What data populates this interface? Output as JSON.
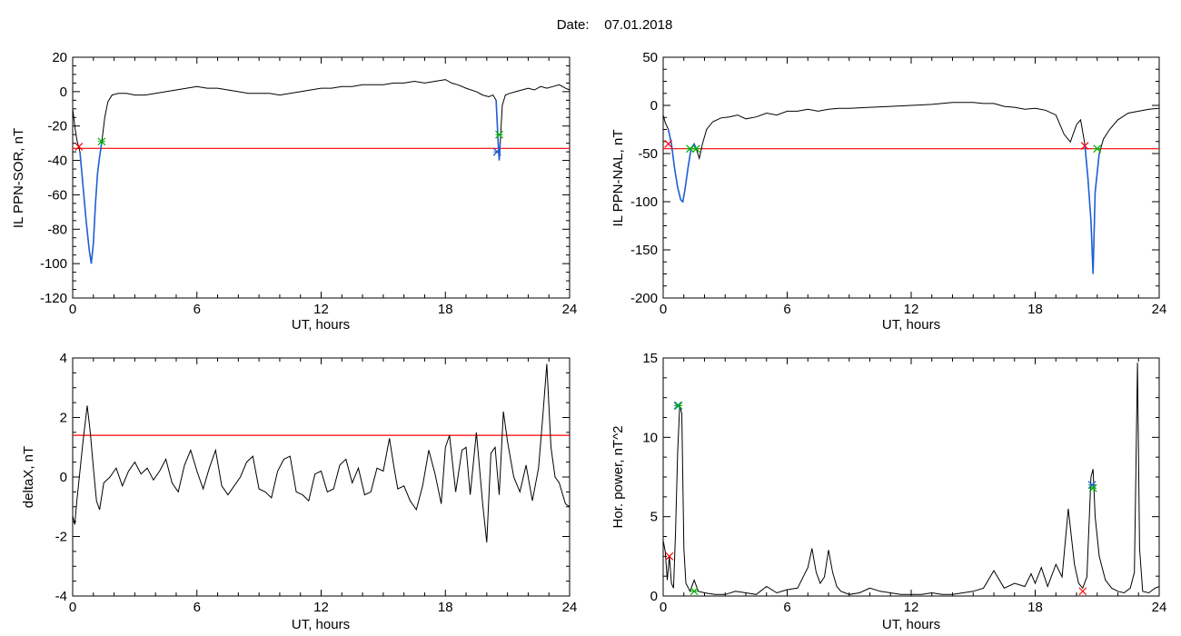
{
  "header": {
    "date_label": "Date:",
    "date_value": "07.01.2018"
  },
  "colors": {
    "line": "#000000",
    "threshold": "#ff0000",
    "event": "#1f5fd6",
    "marker_start": "#ff0000",
    "marker_end": "#00b000",
    "marker_peak": "#1f5fd6"
  },
  "chart_data": [
    {
      "type": "line",
      "xlabel": "UT, hours",
      "ylabel": "IL PPN-SOR, nT",
      "xlim": [
        0,
        24
      ],
      "ylim": [
        -120,
        20
      ],
      "xticks": [
        "0",
        "6",
        "12",
        "18",
        "24"
      ],
      "yticks": [
        "20",
        "0",
        "-20",
        "-40",
        "-60",
        "-80",
        "-100",
        "-120"
      ],
      "ytick_values": [
        20,
        0,
        -20,
        -40,
        -60,
        -80,
        -100,
        -120
      ],
      "threshold": -33,
      "series": [
        {
          "x": [
            0,
            0.1,
            0.2,
            0.35,
            0.5,
            0.65,
            0.8,
            0.9,
            1.0,
            1.1,
            1.2,
            1.3,
            1.4,
            1.55,
            1.7,
            1.9,
            2.2,
            2.6,
            3,
            3.5,
            4,
            4.5,
            5,
            5.5,
            6,
            6.5,
            7,
            7.5,
            8,
            8.5,
            9,
            9.5,
            10,
            10.5,
            11,
            11.5,
            12,
            12.5,
            13,
            13.5,
            14,
            14.5,
            15,
            15.5,
            16,
            16.5,
            17,
            17.5,
            18,
            18.3,
            18.6,
            19,
            19.5,
            19.8,
            20.1,
            20.3,
            20.45,
            20.55,
            20.6,
            20.65,
            20.75,
            20.9,
            21.1,
            21.4,
            21.7,
            22,
            22.3,
            22.6,
            22.9,
            23.2,
            23.5,
            23.8,
            24
          ],
          "y": [
            -10,
            -20,
            -28,
            -35,
            -55,
            -75,
            -92,
            -100,
            -88,
            -65,
            -48,
            -38,
            -30,
            -15,
            -6,
            -2,
            -1,
            -1,
            -2,
            -2,
            -1,
            0,
            1,
            2,
            3,
            2,
            2,
            1,
            0,
            -1,
            -1,
            -1,
            -2,
            -1,
            0,
            1,
            2,
            2,
            3,
            3,
            4,
            4,
            4,
            5,
            5,
            6,
            5,
            6,
            7,
            5,
            4,
            2,
            0,
            -2,
            -3,
            -2,
            -5,
            -30,
            -40,
            -30,
            -8,
            -2,
            -1,
            0,
            1,
            2,
            1,
            3,
            2,
            3,
            4,
            2,
            1
          ]
        }
      ],
      "markers": [
        {
          "x": 0.3,
          "y": -32,
          "kind": "start"
        },
        {
          "x": 1.4,
          "y": -29,
          "kind": "end"
        },
        {
          "x": 20.5,
          "y": -35,
          "kind": "start"
        },
        {
          "x": 20.6,
          "y": -25,
          "kind": "end"
        },
        {
          "x": 20.5,
          "y": -35,
          "kind": "peak"
        }
      ],
      "event_spans": [
        [
          0.3,
          1.4
        ],
        [
          20.4,
          20.7
        ]
      ]
    },
    {
      "type": "line",
      "xlabel": "UT, hours",
      "ylabel": "IL PPN-NAL, nT",
      "xlim": [
        0,
        24
      ],
      "ylim": [
        -200,
        50
      ],
      "xticks": [
        "0",
        "6",
        "12",
        "18",
        "24"
      ],
      "yticks": [
        "50",
        "0",
        "-50",
        "-100",
        "-150",
        "-200"
      ],
      "ytick_values": [
        50,
        0,
        -50,
        -100,
        -150,
        -200
      ],
      "threshold": -45,
      "series": [
        {
          "x": [
            0,
            0.1,
            0.25,
            0.4,
            0.55,
            0.7,
            0.85,
            0.95,
            1.05,
            1.2,
            1.35,
            1.5,
            1.6,
            1.75,
            1.9,
            2.1,
            2.4,
            2.8,
            3.2,
            3.6,
            4,
            4.5,
            5,
            5.5,
            6,
            6.5,
            7,
            7.5,
            8,
            8.5,
            9,
            10,
            11,
            12,
            13,
            14,
            15,
            15.5,
            16,
            16.5,
            17,
            17.5,
            18,
            18.5,
            19,
            19.4,
            19.7,
            20,
            20.2,
            20.4,
            20.55,
            20.7,
            20.8,
            20.9,
            21.1,
            21.3,
            21.6,
            22,
            22.5,
            23,
            23.5,
            24
          ],
          "y": [
            -10,
            -18,
            -25,
            -40,
            -65,
            -85,
            -98,
            -100,
            -88,
            -65,
            -45,
            -40,
            -45,
            -55,
            -40,
            -25,
            -17,
            -13,
            -12,
            -10,
            -14,
            -12,
            -8,
            -10,
            -6,
            -6,
            -4,
            -6,
            -4,
            -3,
            -3,
            -2,
            -1,
            0,
            1,
            3,
            3,
            2,
            2,
            -1,
            -2,
            -4,
            -3,
            -5,
            -10,
            -30,
            -38,
            -20,
            -15,
            -40,
            -75,
            -120,
            -175,
            -90,
            -50,
            -35,
            -25,
            -15,
            -8,
            -6,
            -4,
            -3
          ]
        }
      ],
      "markers": [
        {
          "x": 0.25,
          "y": -40,
          "kind": "start"
        },
        {
          "x": 1.6,
          "y": -45,
          "kind": "end"
        },
        {
          "x": 1.3,
          "y": -45,
          "kind": "end"
        },
        {
          "x": 20.4,
          "y": -42,
          "kind": "start"
        },
        {
          "x": 21.0,
          "y": -45,
          "kind": "end"
        }
      ],
      "event_spans": [
        [
          0.25,
          1.7
        ],
        [
          20.4,
          21.1
        ]
      ]
    },
    {
      "type": "line",
      "xlabel": "UT, hours",
      "ylabel": "deltaX, nT",
      "xlim": [
        0,
        24
      ],
      "ylim": [
        -4,
        4
      ],
      "xticks": [
        "0",
        "6",
        "12",
        "18",
        "24"
      ],
      "yticks": [
        "4",
        "2",
        "0",
        "-2",
        "-4"
      ],
      "ytick_values": [
        4,
        2,
        0,
        -2,
        -4
      ],
      "threshold": 1.4,
      "series": [
        {
          "x": [
            0,
            0.1,
            0.2,
            0.35,
            0.5,
            0.7,
            0.85,
            1.0,
            1.15,
            1.3,
            1.5,
            1.8,
            2.1,
            2.4,
            2.7,
            3.0,
            3.3,
            3.6,
            3.9,
            4.2,
            4.5,
            4.8,
            5.1,
            5.4,
            5.7,
            6.0,
            6.3,
            6.6,
            6.9,
            7.2,
            7.5,
            7.8,
            8.1,
            8.4,
            8.7,
            9.0,
            9.3,
            9.6,
            9.9,
            10.2,
            10.5,
            10.8,
            11.1,
            11.4,
            11.7,
            12.0,
            12.3,
            12.6,
            12.9,
            13.2,
            13.5,
            13.8,
            14.1,
            14.4,
            14.7,
            15.0,
            15.3,
            15.5,
            15.7,
            16.0,
            16.3,
            16.6,
            16.9,
            17.2,
            17.5,
            17.8,
            18.0,
            18.2,
            18.5,
            18.8,
            19.0,
            19.2,
            19.5,
            19.8,
            20.0,
            20.2,
            20.4,
            20.6,
            20.8,
            21.0,
            21.3,
            21.6,
            21.9,
            22.2,
            22.5,
            22.7,
            22.9,
            23.1,
            23.3,
            23.5,
            23.8,
            24
          ],
          "y": [
            -1.3,
            -1.6,
            -0.8,
            0.2,
            1.2,
            2.4,
            1.5,
            0.3,
            -0.8,
            -1.1,
            -0.2,
            0.0,
            0.3,
            -0.3,
            0.2,
            0.5,
            0.1,
            0.3,
            -0.1,
            0.2,
            0.6,
            -0.2,
            -0.5,
            0.4,
            0.9,
            0.2,
            -0.4,
            0.3,
            0.9,
            -0.3,
            -0.6,
            -0.3,
            0.0,
            0.5,
            0.7,
            -0.4,
            -0.5,
            -0.7,
            0.2,
            0.6,
            0.7,
            -0.5,
            -0.6,
            -0.8,
            0.1,
            0.2,
            -0.5,
            -0.4,
            0.4,
            0.6,
            -0.2,
            0.3,
            -0.6,
            -0.5,
            0.3,
            0.2,
            1.3,
            0.4,
            -0.4,
            -0.3,
            -0.8,
            -1.1,
            -0.3,
            0.9,
            0.1,
            -0.9,
            1.0,
            1.4,
            -0.5,
            0.9,
            1.0,
            -0.6,
            1.5,
            -0.9,
            -2.2,
            0.8,
            1.0,
            -0.6,
            2.2,
            1.2,
            0.0,
            -0.5,
            0.4,
            -0.8,
            0.3,
            2.0,
            3.8,
            1.0,
            0.0,
            -0.2,
            -0.9,
            -1.0
          ]
        }
      ],
      "markers": [],
      "event_spans": []
    },
    {
      "type": "line",
      "xlabel": "UT, hours",
      "ylabel": "Hor. power, nT^2",
      "xlim": [
        0,
        24
      ],
      "ylim": [
        0,
        15
      ],
      "xticks": [
        "0",
        "6",
        "12",
        "18",
        "24"
      ],
      "yticks": [
        "15",
        "10",
        "5",
        "0"
      ],
      "ytick_values": [
        15,
        10,
        5,
        0
      ],
      "threshold": null,
      "series": [
        {
          "x": [
            0,
            0.1,
            0.2,
            0.3,
            0.4,
            0.5,
            0.6,
            0.7,
            0.8,
            0.9,
            1.0,
            1.1,
            1.3,
            1.5,
            1.7,
            2.0,
            2.5,
            3,
            3.5,
            4,
            4.5,
            5,
            5.5,
            6,
            6.5,
            7,
            7.2,
            7.4,
            7.6,
            7.8,
            8.0,
            8.2,
            8.4,
            8.6,
            8.8,
            9.0,
            9.5,
            10,
            10.5,
            11,
            11.5,
            12,
            12.5,
            13,
            13.5,
            14,
            14.5,
            15,
            15.5,
            16,
            16.5,
            17,
            17.5,
            17.8,
            18.0,
            18.3,
            18.6,
            19.0,
            19.3,
            19.6,
            19.9,
            20.1,
            20.3,
            20.5,
            20.7,
            20.8,
            20.9,
            21.1,
            21.4,
            21.7,
            22.0,
            22.3,
            22.6,
            22.8,
            22.95,
            23.05,
            23.2,
            23.5,
            23.8,
            24
          ],
          "y": [
            3.5,
            2.8,
            1.0,
            2.5,
            0.8,
            0.5,
            4.0,
            9.0,
            12.0,
            11.5,
            3.0,
            0.8,
            0.3,
            1.0,
            0.3,
            0.2,
            0.1,
            0.1,
            0.3,
            0.2,
            0.1,
            0.6,
            0.2,
            0.4,
            0.5,
            1.8,
            3.0,
            1.5,
            0.8,
            1.2,
            2.9,
            1.5,
            0.6,
            0.3,
            0.2,
            0.1,
            0.2,
            0.5,
            0.3,
            0.2,
            0.1,
            0.1,
            0.1,
            0.2,
            0.1,
            0.1,
            0.2,
            0.3,
            0.5,
            1.6,
            0.5,
            0.8,
            0.6,
            1.4,
            0.8,
            1.8,
            0.6,
            2.0,
            1.2,
            5.5,
            2.0,
            0.8,
            0.5,
            1.2,
            7.5,
            8.0,
            5.0,
            2.5,
            1.0,
            0.5,
            0.3,
            0.2,
            0.5,
            1.5,
            14.7,
            3.0,
            0.3,
            0.2,
            0.5,
            0.6
          ]
        }
      ],
      "markers": [
        {
          "x": 0.7,
          "y": 12.0,
          "kind": "peak"
        },
        {
          "x": 0.75,
          "y": 12.0,
          "kind": "end"
        },
        {
          "x": 20.75,
          "y": 7.0,
          "kind": "peak"
        },
        {
          "x": 20.8,
          "y": 6.8,
          "kind": "end"
        },
        {
          "x": 20.3,
          "y": 0.3,
          "kind": "start"
        },
        {
          "x": 1.5,
          "y": 0.3,
          "kind": "end"
        },
        {
          "x": 0.3,
          "y": 2.5,
          "kind": "start"
        }
      ],
      "event_spans": []
    }
  ]
}
